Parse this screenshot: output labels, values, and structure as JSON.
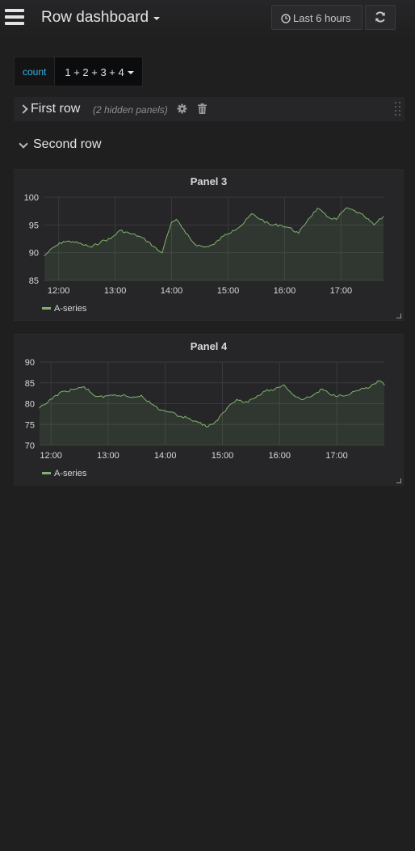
{
  "header": {
    "title": "Row dashboard",
    "time_range": "Last 6 hours"
  },
  "variable": {
    "label": "count",
    "value": "1 + 2 + 3 + 4"
  },
  "rows": [
    {
      "title": "First row",
      "collapsed": true,
      "hidden_note": "(2 hidden panels)"
    },
    {
      "title": "Second row",
      "collapsed": false
    }
  ],
  "colors": {
    "accent": "#33b5e5",
    "series": "#7eb26d",
    "background": "#1f1f20",
    "panel": "#262628"
  },
  "chart_data": [
    {
      "type": "line",
      "title": "Panel 3",
      "x_ticks": [
        "12:00",
        "13:00",
        "14:00",
        "15:00",
        "16:00",
        "17:00"
      ],
      "y_ticks": [
        85,
        90,
        95,
        100
      ],
      "ylim": [
        85,
        100
      ],
      "xlim": [
        "11:44",
        "17:46"
      ],
      "grid": true,
      "legend": "bottom-left",
      "series": [
        {
          "name": "A-series",
          "x": [
            "11:45",
            "11:55",
            "12:05",
            "12:15",
            "12:25",
            "12:35",
            "12:45",
            "12:55",
            "13:05",
            "13:15",
            "13:25",
            "13:35",
            "13:45",
            "13:50",
            "13:55",
            "14:00",
            "14:05",
            "14:15",
            "14:25",
            "14:35",
            "14:45",
            "14:55",
            "15:05",
            "15:15",
            "15:25",
            "15:35",
            "15:45",
            "15:55",
            "16:05",
            "16:15",
            "16:25",
            "16:35",
            "16:45",
            "16:55",
            "17:05",
            "17:15",
            "17:25",
            "17:35",
            "17:45"
          ],
          "y": [
            89.5,
            91,
            92,
            92,
            91.5,
            91,
            92,
            92.5,
            94,
            93.5,
            93,
            92,
            90.5,
            90,
            93,
            95.5,
            96,
            93.5,
            91.5,
            91,
            91.5,
            93,
            94,
            95,
            97,
            96,
            95,
            95,
            94.5,
            93.5,
            96,
            98,
            96.5,
            96,
            98,
            97.5,
            96.5,
            95,
            96.5
          ]
        }
      ]
    },
    {
      "type": "line",
      "title": "Panel 4",
      "x_ticks": [
        "12:00",
        "13:00",
        "14:00",
        "15:00",
        "16:00",
        "17:00"
      ],
      "y_ticks": [
        70,
        75,
        80,
        85,
        90
      ],
      "ylim": [
        70,
        90
      ],
      "xlim": [
        "11:48",
        "17:50"
      ],
      "grid": true,
      "legend": "bottom-left",
      "series": [
        {
          "name": "A-series",
          "x": [
            "11:48",
            "11:55",
            "12:05",
            "12:15",
            "12:25",
            "12:35",
            "12:45",
            "12:55",
            "13:05",
            "13:15",
            "13:25",
            "13:35",
            "13:45",
            "13:55",
            "14:05",
            "14:15",
            "14:25",
            "14:35",
            "14:45",
            "14:55",
            "15:05",
            "15:15",
            "15:25",
            "15:35",
            "15:45",
            "15:55",
            "16:05",
            "16:15",
            "16:25",
            "16:35",
            "16:45",
            "16:55",
            "17:05",
            "17:15",
            "17:25",
            "17:35",
            "17:45",
            "17:50"
          ],
          "y": [
            79,
            80,
            82,
            83,
            83.5,
            84,
            82,
            81.5,
            82,
            82,
            81.5,
            82,
            80,
            78.5,
            78,
            77,
            76.5,
            75.5,
            74.5,
            76,
            79,
            81,
            80.5,
            81.5,
            83,
            83.5,
            84.5,
            82,
            81,
            82,
            83.5,
            82,
            82,
            82.5,
            83.5,
            84,
            85.5,
            84.5
          ]
        }
      ]
    }
  ]
}
